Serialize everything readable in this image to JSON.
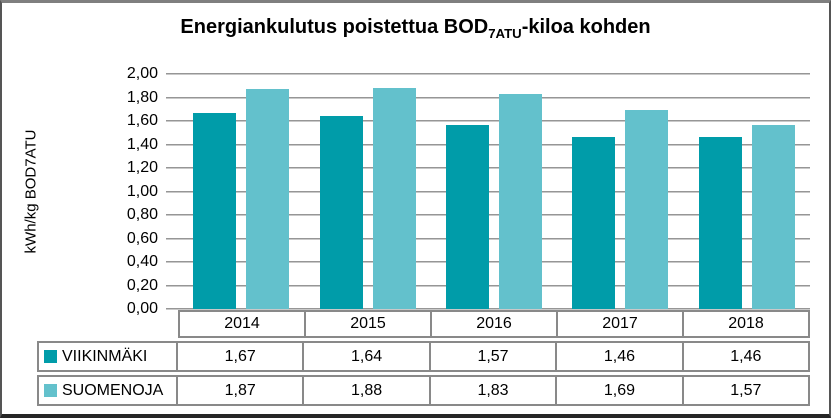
{
  "title": {
    "prefix": "Energiankulutus poistettua BOD",
    "sub": "7ATU",
    "suffix": "-kiloa kohden"
  },
  "colors": {
    "series_viikinmaki": "#009CA9",
    "series_suomenoja": "#63C1CC",
    "gridline": "#969696",
    "table_border": "#898989",
    "frame_border": "#555555",
    "text": "#000000"
  },
  "chart_data": {
    "type": "bar",
    "title": "Energiankulutus poistettua BOD7ATU-kiloa kohden",
    "xlabel": "",
    "ylabel": "kWh/kg BOD7ATU",
    "categories": [
      "2014",
      "2015",
      "2016",
      "2017",
      "2018"
    ],
    "series": [
      {
        "name": "VIIKINMÄKI",
        "color": "#009CA9",
        "values": [
          1.67,
          1.64,
          1.57,
          1.46,
          1.46
        ],
        "display": [
          "1,67",
          "1,64",
          "1,57",
          "1,46",
          "1,46"
        ]
      },
      {
        "name": "SUOMENOJA",
        "color": "#63C1CC",
        "values": [
          1.87,
          1.88,
          1.83,
          1.69,
          1.57
        ],
        "display": [
          "1,87",
          "1,88",
          "1,83",
          "1,69",
          "1,57"
        ]
      }
    ],
    "ylim": [
      0,
      2.0
    ],
    "ytick_step": 0.2,
    "ytick_labels": [
      "0,00",
      "0,20",
      "0,40",
      "0,60",
      "0,80",
      "1,00",
      "1,20",
      "1,40",
      "1,60",
      "1,80",
      "2,00"
    ],
    "decimal_separator": ",",
    "grid": true,
    "legend_position": "data-table-left"
  }
}
